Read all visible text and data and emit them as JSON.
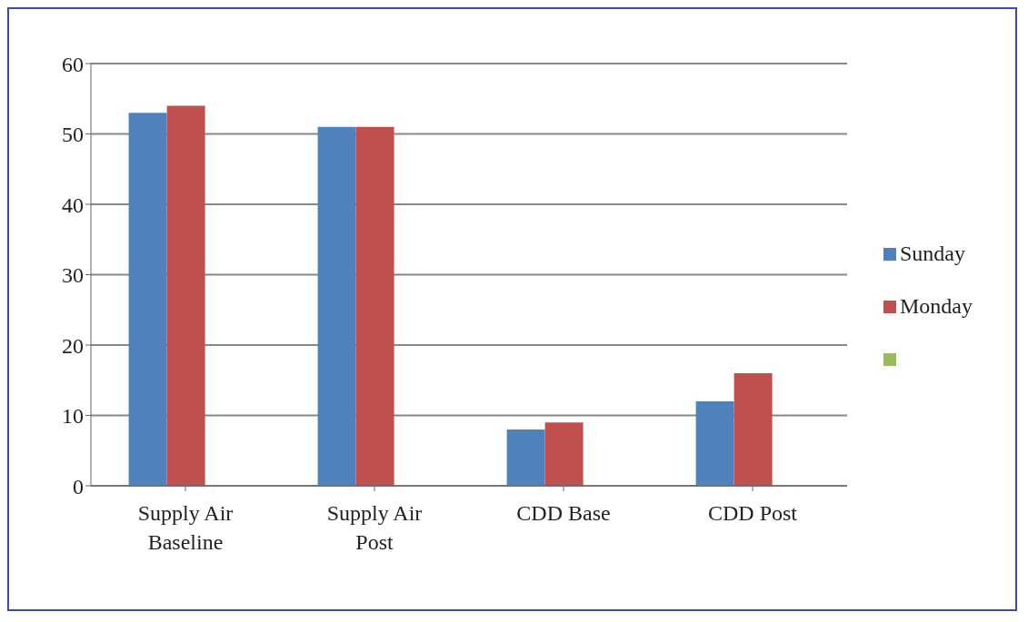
{
  "chart_data": {
    "type": "bar",
    "categories": [
      "Supply Air Baseline",
      "Supply Air Post",
      "CDD Base",
      "CDD Post"
    ],
    "series": [
      {
        "name": "Sunday",
        "color": "#4f81bd",
        "values": [
          53,
          51,
          8,
          12
        ]
      },
      {
        "name": "Monday",
        "color": "#c0504d",
        "values": [
          54,
          51,
          9,
          16
        ]
      },
      {
        "color": "#9bbb59",
        "values": [
          null,
          null,
          null,
          null
        ]
      }
    ],
    "ylim": [
      0,
      60
    ],
    "yticks": [
      0,
      10,
      20,
      30,
      40,
      50,
      60
    ],
    "grid": "y",
    "legend": "right"
  }
}
